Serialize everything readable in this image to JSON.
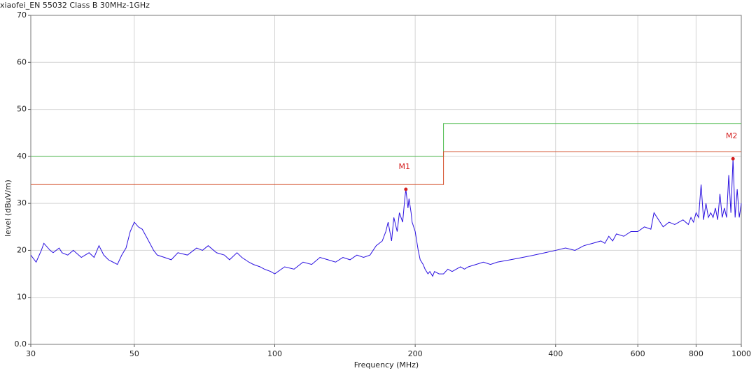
{
  "chart_data": {
    "type": "line",
    "title": "xiaofei_EN 55032 Class B 30MHz-1GHz",
    "xlabel": "Frequency (MHz)",
    "ylabel": "level (dBuV/m)",
    "xscale": "log",
    "xlim": [
      30,
      1000
    ],
    "ylim": [
      0,
      70
    ],
    "xticks": [
      30,
      50,
      100,
      200,
      400,
      600,
      800,
      1000
    ],
    "yticks": [
      {
        "value": 0,
        "label": "0.0"
      },
      10,
      20,
      30,
      40,
      50,
      60,
      70
    ],
    "grid": true,
    "series": [
      {
        "color": "#2a10e0",
        "x": [
          30,
          30.8,
          31.6,
          32,
          33,
          33.5,
          34.5,
          35,
          36,
          37,
          38.5,
          40,
          41,
          42,
          43,
          44,
          45,
          46,
          47,
          48,
          49,
          50,
          51,
          52,
          53,
          54,
          55,
          56,
          58,
          60,
          62,
          65,
          68,
          70,
          72,
          75,
          78,
          80,
          83,
          85,
          88,
          90,
          93,
          95,
          98,
          100,
          105,
          110,
          115,
          120,
          125,
          130,
          135,
          140,
          145,
          150,
          155,
          160,
          165,
          170,
          173,
          175,
          178,
          180,
          183,
          185,
          188,
          190,
          191,
          193,
          194,
          196,
          197,
          200,
          203,
          205,
          208,
          210,
          213,
          215,
          218,
          220,
          225,
          230,
          235,
          240,
          245,
          250,
          255,
          260,
          270,
          280,
          290,
          300,
          320,
          340,
          360,
          380,
          400,
          420,
          440,
          460,
          480,
          500,
          510,
          520,
          530,
          540,
          560,
          580,
          600,
          620,
          640,
          650,
          680,
          700,
          720,
          750,
          770,
          780,
          790,
          800,
          810,
          820,
          830,
          840,
          850,
          860,
          870,
          880,
          890,
          900,
          910,
          920,
          930,
          940,
          950,
          960,
          970,
          980,
          990,
          1000
        ],
        "values": [
          19,
          17.5,
          20,
          21.5,
          20,
          19.5,
          20.5,
          19.5,
          19,
          20,
          18.5,
          19.5,
          18.5,
          21,
          19,
          18,
          17.5,
          17,
          19,
          20.5,
          24,
          26,
          25,
          24.5,
          23,
          21.5,
          20,
          19,
          18.5,
          18,
          19.5,
          19,
          20.5,
          20,
          21,
          19.5,
          19,
          18,
          19.5,
          18.5,
          17.5,
          17,
          16.5,
          16,
          15.5,
          15,
          16.5,
          16,
          17.5,
          17,
          18.5,
          18,
          17.5,
          18.5,
          18,
          19,
          18.5,
          19,
          21,
          22,
          24,
          26,
          22,
          27,
          24,
          28,
          26,
          31,
          33,
          29,
          31,
          28,
          26,
          24,
          20,
          18,
          17,
          16,
          15,
          15.5,
          14.5,
          15.5,
          15,
          15,
          16,
          15.5,
          16,
          16.5,
          16,
          16.5,
          17,
          17.5,
          17,
          17.5,
          18,
          18.5,
          19,
          19.5,
          20,
          20.5,
          20,
          21,
          21.5,
          22,
          21.5,
          23,
          22,
          23.5,
          23,
          24,
          24,
          25,
          24.5,
          28,
          25,
          26,
          25.5,
          26.5,
          25.5,
          27,
          26,
          28,
          27,
          34,
          26.5,
          30,
          27,
          28,
          27,
          29,
          26.5,
          32,
          27,
          29,
          27,
          36,
          28,
          39.5,
          27,
          33,
          27,
          30
        ]
      },
      {
        "color": "#4cbb4c",
        "x": [
          30,
          230,
          230,
          1000
        ],
        "values": [
          40,
          40,
          47,
          47
        ]
      },
      {
        "color": "#d4502c",
        "x": [
          30,
          230,
          230,
          1000
        ],
        "values": [
          34,
          34,
          41,
          41
        ]
      }
    ],
    "markers": [
      {
        "label": "M1",
        "x": 191,
        "y": 33,
        "color": "#d42020"
      },
      {
        "label": "M2",
        "x": 960,
        "y": 39.5,
        "color": "#d42020"
      }
    ]
  }
}
